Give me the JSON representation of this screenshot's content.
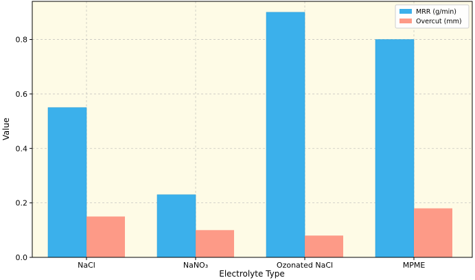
{
  "chart_data": {
    "type": "bar",
    "title": "",
    "xlabel": "Electrolyte Type",
    "ylabel": "Value",
    "categories": [
      "NaCl",
      "NaNO₃",
      "Ozonated NaCl",
      "MPME"
    ],
    "series": [
      {
        "name": "MRR (g/min)",
        "values": [
          0.55,
          0.23,
          0.9,
          0.8
        ],
        "color": "#3bb0eb"
      },
      {
        "name": "Overcut (mm)",
        "values": [
          0.15,
          0.1,
          0.08,
          0.18
        ],
        "color": "#fd9a87"
      }
    ],
    "ylim": [
      0,
      0.94
    ],
    "yticks": [
      0.0,
      0.2,
      0.4,
      0.6,
      0.8
    ],
    "ytick_labels": [
      "0.0",
      "0.2",
      "0.4",
      "0.6",
      "0.8"
    ],
    "grid": true,
    "legend_position": "top-right",
    "plot_background": "#fefbe6"
  }
}
